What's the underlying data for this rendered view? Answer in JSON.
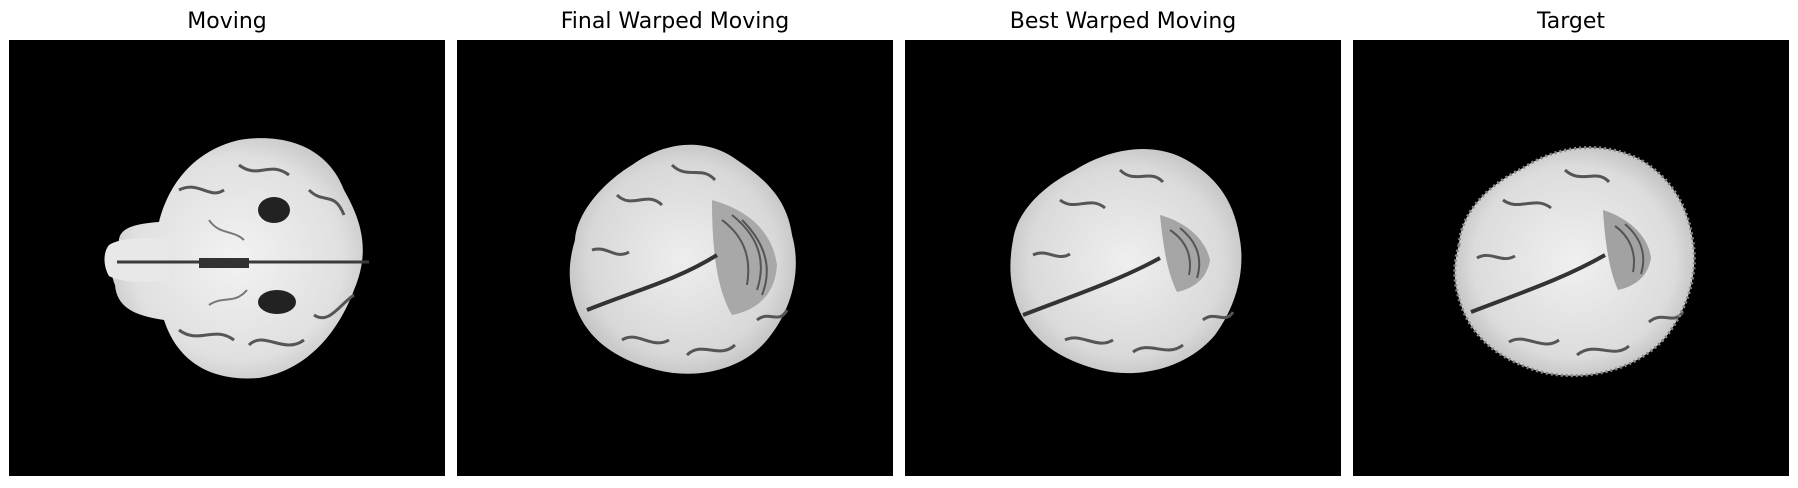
{
  "figure": {
    "panels": [
      {
        "title": "Moving"
      },
      {
        "title": "Final Warped Moving"
      },
      {
        "title": "Best Warped Moving"
      },
      {
        "title": "Target"
      }
    ],
    "background_color": "#000000"
  }
}
